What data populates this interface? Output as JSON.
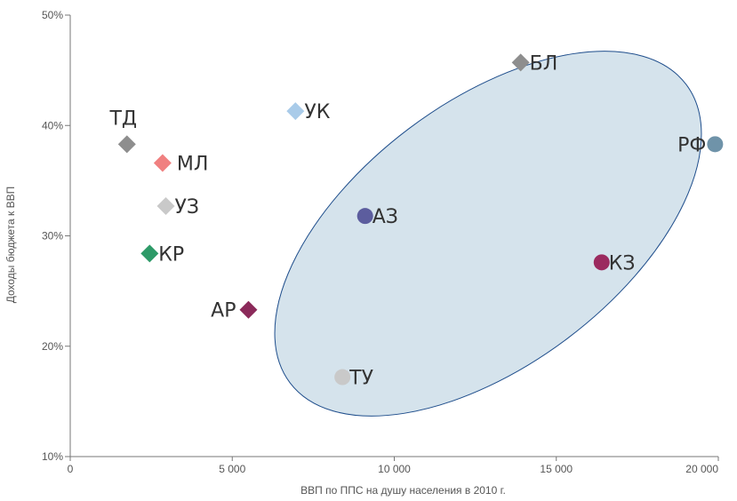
{
  "chart_data": {
    "type": "scatter",
    "title": "",
    "xlabel": "ВВП по ППС на душу населения в 2010 г.",
    "ylabel": "Доходы бюджета к ВВП",
    "xlim": [
      0,
      20000
    ],
    "ylim": [
      10,
      50
    ],
    "x_ticks": [
      0,
      5000,
      10000,
      15000,
      20000
    ],
    "x_tick_labels": [
      "0",
      "5 000",
      "10 000",
      "15 000",
      "20 000"
    ],
    "y_ticks": [
      10,
      20,
      30,
      40,
      50
    ],
    "y_tick_labels": [
      "10%",
      "20%",
      "30%",
      "40%",
      "50%"
    ],
    "grid": false,
    "highlight_region": {
      "shape": "ellipse",
      "fill": "#d5e3ec",
      "stroke": "#1f4e8c",
      "contains": [
        "БЛ",
        "РФ",
        "АЗ",
        "КЗ",
        "ТУ"
      ]
    },
    "points": [
      {
        "label": "БЛ",
        "x": 13900,
        "y": 45.7,
        "marker": "diamond",
        "color": "#8e8e8e"
      },
      {
        "label": "УК",
        "x": 6950,
        "y": 41.3,
        "marker": "diamond",
        "color": "#a9cbe9"
      },
      {
        "label": "ТД",
        "x": 1750,
        "y": 38.3,
        "marker": "diamond",
        "color": "#8e8e8e"
      },
      {
        "label": "МЛ",
        "x": 2850,
        "y": 36.6,
        "marker": "diamond",
        "color": "#f08080"
      },
      {
        "label": "УЗ",
        "x": 2950,
        "y": 32.7,
        "marker": "diamond",
        "color": "#c9c9c9"
      },
      {
        "label": "КР",
        "x": 2450,
        "y": 28.4,
        "marker": "diamond",
        "color": "#2e9a68"
      },
      {
        "label": "АР",
        "x": 5500,
        "y": 23.3,
        "marker": "diamond",
        "color": "#8b2a5a"
      },
      {
        "label": "РФ",
        "x": 19900,
        "y": 38.3,
        "marker": "circle",
        "color": "#6f93a9"
      },
      {
        "label": "АЗ",
        "x": 9100,
        "y": 31.8,
        "marker": "circle",
        "color": "#5c5d9e"
      },
      {
        "label": "КЗ",
        "x": 16400,
        "y": 27.6,
        "marker": "circle",
        "color": "#9b2a5f"
      },
      {
        "label": "ТУ",
        "x": 8400,
        "y": 17.2,
        "marker": "circle",
        "color": "#c9c9c9"
      }
    ]
  }
}
